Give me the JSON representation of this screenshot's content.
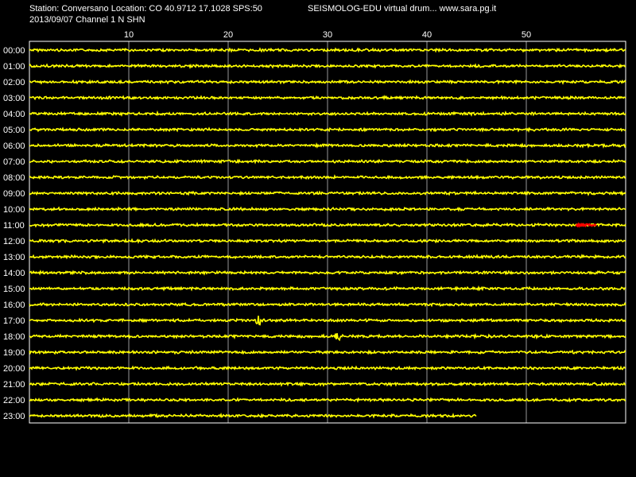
{
  "header": {
    "station_line": "Station: Conversano Location: CO 40.9712 17.1028 SPS:50",
    "date_line": "2013/09/07  Channel 1 N SHN",
    "credit_line": "SEISMOLOG-EDU virtual drum... www.sara.pg.it"
  },
  "colors": {
    "background": "#000000",
    "trace": "#ffff00",
    "event": "#ff0000",
    "grid": "#ffffff",
    "text": "#ffffff"
  },
  "chart_data": {
    "type": "line",
    "title": "",
    "xlabel": "",
    "ylabel": "",
    "xlim": [
      0,
      60
    ],
    "x_ticks": [
      10,
      20,
      30,
      40,
      50
    ],
    "x_tick_labels": [
      "10",
      "20",
      "30",
      "40",
      "50"
    ],
    "grid": true,
    "rows": [
      "00:00",
      "01:00",
      "02:00",
      "03:00",
      "04:00",
      "05:00",
      "06:00",
      "07:00",
      "08:00",
      "09:00",
      "10:00",
      "11:00",
      "12:00",
      "13:00",
      "14:00",
      "15:00",
      "16:00",
      "17:00",
      "18:00",
      "19:00",
      "20:00",
      "21:00",
      "22:00",
      "23:00"
    ],
    "last_row_end_minute": 45,
    "events": [
      {
        "row": "11:00",
        "start_minute": 55,
        "end_minute": 57,
        "color": "#ff0000"
      },
      {
        "row": "17:00",
        "minute": 23,
        "color": "#ffff00"
      },
      {
        "row": "18:00",
        "minute": 31,
        "color": "#ffff00"
      }
    ]
  }
}
